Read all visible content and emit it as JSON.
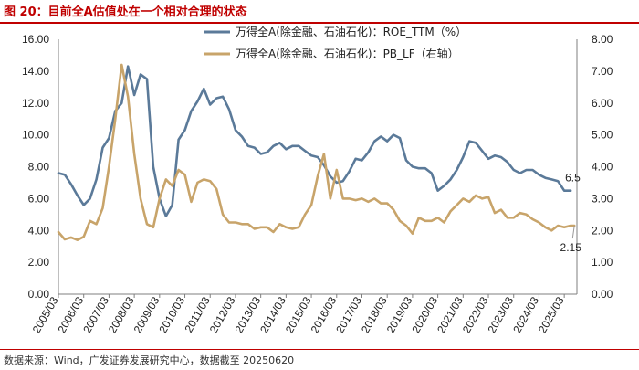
{
  "figure": {
    "title": "图 20：目前全A估值处在一个相对合理的状态",
    "source": "数据来源：Wind，广发证券发展研究中心，数据截至 20250620"
  },
  "chart_data": {
    "type": "line",
    "categories": [
      "2005/03",
      "2006/03",
      "2007/03",
      "2008/03",
      "2009/03",
      "2010/03",
      "2011/03",
      "2012/03",
      "2013/03",
      "2014/03",
      "2015/03",
      "2016/03",
      "2017/03",
      "2018/03",
      "2019/03",
      "2020/03",
      "2021/03",
      "2022/03",
      "2023/03",
      "2024/03",
      "2025/03"
    ],
    "x_start": 2005.0,
    "x_end": 2025.5,
    "y_left": {
      "min": 0,
      "max": 16,
      "ticks": [
        "0.00",
        "2.00",
        "4.00",
        "6.00",
        "8.00",
        "10.00",
        "12.00",
        "14.00",
        "16.00"
      ]
    },
    "y_right": {
      "min": 0,
      "max": 8,
      "ticks": [
        "0.00",
        "1.00",
        "2.00",
        "3.00",
        "4.00",
        "5.00",
        "6.00",
        "7.00",
        "8.00"
      ]
    },
    "series": [
      {
        "name": "万得全A(除金融、石油石化)：ROE_TTM（%）",
        "axis": "left",
        "color": "#5b7a99",
        "x": [
          2005.0,
          2005.25,
          2005.5,
          2005.75,
          2006.0,
          2006.25,
          2006.5,
          2006.75,
          2007.0,
          2007.25,
          2007.5,
          2007.75,
          2008.0,
          2008.25,
          2008.5,
          2008.75,
          2009.0,
          2009.25,
          2009.5,
          2009.75,
          2010.0,
          2010.25,
          2010.5,
          2010.75,
          2011.0,
          2011.25,
          2011.5,
          2011.75,
          2012.0,
          2012.25,
          2012.5,
          2012.75,
          2013.0,
          2013.25,
          2013.5,
          2013.75,
          2014.0,
          2014.25,
          2014.5,
          2014.75,
          2015.0,
          2015.25,
          2015.5,
          2015.75,
          2016.0,
          2016.25,
          2016.5,
          2016.75,
          2017.0,
          2017.25,
          2017.5,
          2017.75,
          2018.0,
          2018.25,
          2018.5,
          2018.75,
          2019.0,
          2019.25,
          2019.5,
          2019.75,
          2020.0,
          2020.25,
          2020.5,
          2020.75,
          2021.0,
          2021.25,
          2021.5,
          2021.75,
          2022.0,
          2022.25,
          2022.5,
          2022.75,
          2023.0,
          2023.25,
          2023.5,
          2023.75,
          2024.0,
          2024.25,
          2024.5,
          2024.75,
          2025.0,
          2025.25
        ],
        "values": [
          7.6,
          7.5,
          6.9,
          6.2,
          5.6,
          6.0,
          7.2,
          9.2,
          9.8,
          11.5,
          12.0,
          14.3,
          12.5,
          13.8,
          13.5,
          8.0,
          6.0,
          4.9,
          5.6,
          9.7,
          10.3,
          11.5,
          12.1,
          12.9,
          11.9,
          12.3,
          12.4,
          11.6,
          10.3,
          9.9,
          9.3,
          9.2,
          8.8,
          8.9,
          9.3,
          9.5,
          9.1,
          9.3,
          9.3,
          9.0,
          8.7,
          8.6,
          8.1,
          7.4,
          7.0,
          7.1,
          7.7,
          8.5,
          8.4,
          8.9,
          9.6,
          9.9,
          9.6,
          10.0,
          9.8,
          8.4,
          8.0,
          7.9,
          7.9,
          7.6,
          6.5,
          6.8,
          7.2,
          7.8,
          8.6,
          9.6,
          9.5,
          9.0,
          8.5,
          8.7,
          8.6,
          8.3,
          7.8,
          7.6,
          7.8,
          7.8,
          7.5,
          7.3,
          7.2,
          7.1,
          6.5,
          6.5
        ]
      },
      {
        "name": "万得全A(除金融、石油石化)：PB_LF（右轴）",
        "axis": "right",
        "color": "#c8a46a",
        "x": [
          2005.0,
          2005.25,
          2005.5,
          2005.75,
          2006.0,
          2006.25,
          2006.5,
          2006.75,
          2007.0,
          2007.25,
          2007.5,
          2007.75,
          2008.0,
          2008.25,
          2008.5,
          2008.75,
          2009.0,
          2009.25,
          2009.5,
          2009.75,
          2010.0,
          2010.25,
          2010.5,
          2010.75,
          2011.0,
          2011.25,
          2011.5,
          2011.75,
          2012.0,
          2012.25,
          2012.5,
          2012.75,
          2013.0,
          2013.25,
          2013.5,
          2013.75,
          2014.0,
          2014.25,
          2014.5,
          2014.75,
          2015.0,
          2015.25,
          2015.5,
          2015.75,
          2016.0,
          2016.25,
          2016.5,
          2016.75,
          2017.0,
          2017.25,
          2017.5,
          2017.75,
          2018.0,
          2018.25,
          2018.5,
          2018.75,
          2019.0,
          2019.25,
          2019.5,
          2019.75,
          2020.0,
          2020.25,
          2020.5,
          2020.75,
          2021.0,
          2021.25,
          2021.5,
          2021.75,
          2022.0,
          2022.25,
          2022.5,
          2022.75,
          2023.0,
          2023.25,
          2023.5,
          2023.75,
          2024.0,
          2024.25,
          2024.5,
          2024.75,
          2025.0,
          2025.25,
          2025.4
        ],
        "values": [
          1.95,
          1.72,
          1.78,
          1.7,
          1.8,
          2.3,
          2.2,
          2.7,
          4.0,
          5.5,
          7.2,
          6.2,
          4.4,
          3.0,
          2.2,
          2.1,
          3.0,
          3.6,
          3.4,
          3.9,
          3.75,
          2.9,
          3.5,
          3.6,
          3.55,
          3.3,
          2.5,
          2.25,
          2.25,
          2.2,
          2.2,
          2.05,
          2.1,
          2.1,
          1.95,
          2.2,
          2.1,
          2.05,
          2.1,
          2.5,
          2.8,
          3.7,
          4.4,
          3.0,
          3.9,
          3.0,
          3.0,
          2.95,
          3.0,
          2.9,
          3.0,
          2.85,
          2.85,
          2.65,
          2.3,
          2.15,
          1.9,
          2.4,
          2.3,
          2.3,
          2.4,
          2.25,
          2.6,
          2.8,
          3.0,
          2.9,
          3.1,
          3.0,
          3.05,
          2.55,
          2.65,
          2.4,
          2.4,
          2.55,
          2.5,
          2.35,
          2.25,
          2.1,
          2.0,
          2.15,
          2.1,
          2.15,
          2.15
        ]
      }
    ],
    "legend": [
      "万得全A(除金融、石油石化)：ROE_TTM（%）",
      "万得全A(除金融、石油石化)：PB_LF（右轴）"
    ],
    "annotations": [
      {
        "text": "6.5",
        "axis": "left",
        "x": 2025.25,
        "y": 6.5
      },
      {
        "text": "2.15",
        "axis": "right",
        "x": 2025.4,
        "y": 2.15
      }
    ]
  }
}
